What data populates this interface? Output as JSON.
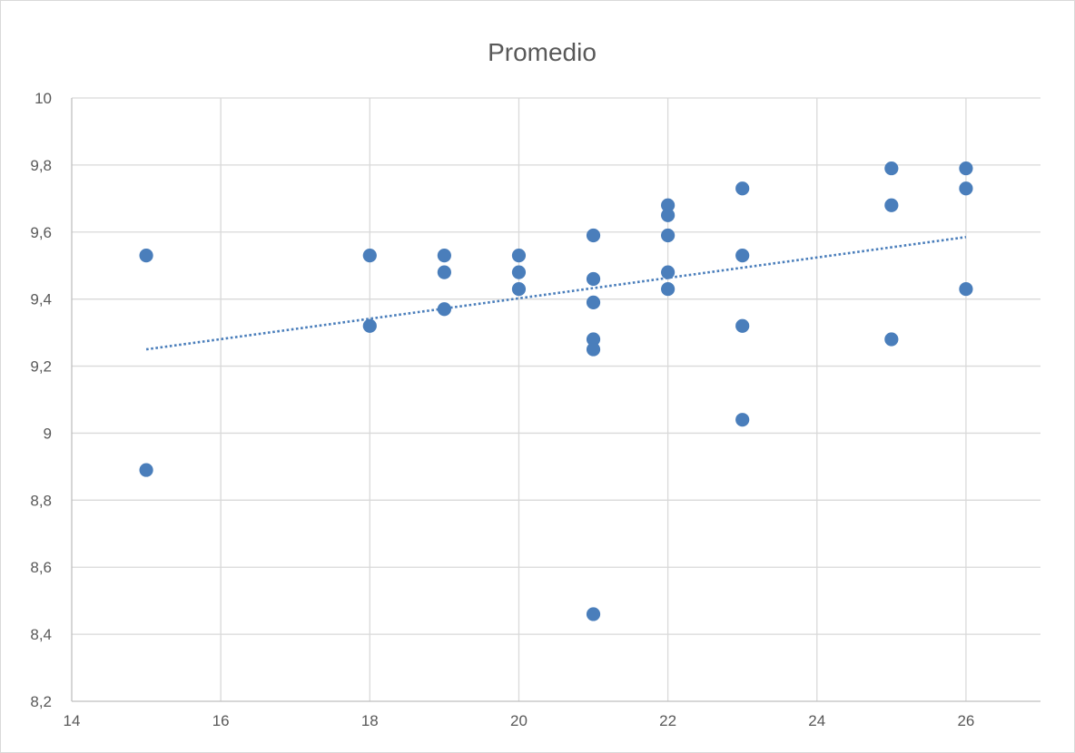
{
  "chart_data": {
    "type": "scatter",
    "title": "Promedio",
    "xlabel": "",
    "ylabel": "",
    "xlim": [
      14,
      27
    ],
    "ylim": [
      8.2,
      10
    ],
    "x_ticks": [
      14,
      16,
      18,
      20,
      22,
      24,
      26
    ],
    "x_tick_labels": [
      "14",
      "16",
      "18",
      "20",
      "22",
      "24",
      "26"
    ],
    "y_ticks": [
      8.2,
      8.4,
      8.6,
      8.8,
      9.0,
      9.2,
      9.4,
      9.6,
      9.8,
      10.0
    ],
    "y_tick_labels": [
      "8,2",
      "8,4",
      "8,6",
      "8,8",
      "9",
      "9,2",
      "9,4",
      "9,6",
      "9,8",
      "10"
    ],
    "grid": true,
    "legend": "none",
    "marker_color": "#4a7ebb",
    "trendline": {
      "type": "linear",
      "style": "dotted",
      "color": "#4a7ebb",
      "x_start": 15,
      "y_start": 9.25,
      "x_end": 26,
      "y_end": 9.585
    },
    "points": [
      {
        "x": 15,
        "y": 9.53
      },
      {
        "x": 15,
        "y": 8.89
      },
      {
        "x": 18,
        "y": 9.53
      },
      {
        "x": 18,
        "y": 9.32
      },
      {
        "x": 19,
        "y": 9.53
      },
      {
        "x": 19,
        "y": 9.48
      },
      {
        "x": 19,
        "y": 9.37
      },
      {
        "x": 20,
        "y": 9.53
      },
      {
        "x": 20,
        "y": 9.48
      },
      {
        "x": 20,
        "y": 9.43
      },
      {
        "x": 21,
        "y": 9.59
      },
      {
        "x": 21,
        "y": 9.46
      },
      {
        "x": 21,
        "y": 9.39
      },
      {
        "x": 21,
        "y": 9.28
      },
      {
        "x": 21,
        "y": 9.25
      },
      {
        "x": 21,
        "y": 8.46
      },
      {
        "x": 22,
        "y": 9.68
      },
      {
        "x": 22,
        "y": 9.65
      },
      {
        "x": 22,
        "y": 9.59
      },
      {
        "x": 22,
        "y": 9.48
      },
      {
        "x": 22,
        "y": 9.43
      },
      {
        "x": 23,
        "y": 9.73
      },
      {
        "x": 23,
        "y": 9.53
      },
      {
        "x": 23,
        "y": 9.32
      },
      {
        "x": 23,
        "y": 9.04
      },
      {
        "x": 25,
        "y": 9.79
      },
      {
        "x": 25,
        "y": 9.68
      },
      {
        "x": 25,
        "y": 9.28
      },
      {
        "x": 26,
        "y": 9.79
      },
      {
        "x": 26,
        "y": 9.73
      },
      {
        "x": 26,
        "y": 9.43
      }
    ]
  }
}
